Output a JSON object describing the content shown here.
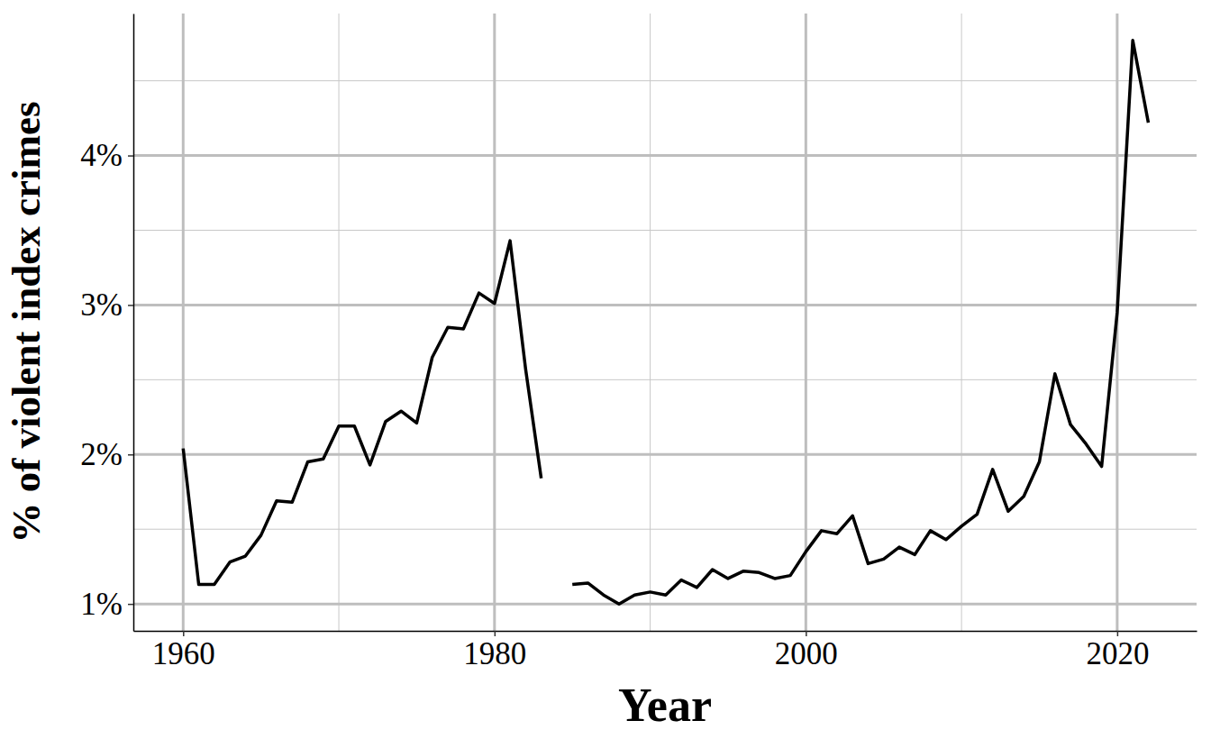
{
  "chart_data": {
    "type": "line",
    "xlabel": "Year",
    "ylabel": "% of violent index crimes",
    "x": [
      1960,
      1961,
      1962,
      1963,
      1964,
      1965,
      1966,
      1967,
      1968,
      1969,
      1970,
      1971,
      1972,
      1973,
      1974,
      1975,
      1976,
      1977,
      1978,
      1979,
      1980,
      1981,
      1982,
      1983,
      1984,
      1985,
      1986,
      1987,
      1988,
      1989,
      1990,
      1991,
      1992,
      1993,
      1994,
      1995,
      1996,
      1997,
      1998,
      1999,
      2000,
      2001,
      2002,
      2003,
      2004,
      2005,
      2006,
      2007,
      2008,
      2009,
      2010,
      2011,
      2012,
      2013,
      2014,
      2015,
      2016,
      2017,
      2018,
      2019,
      2020,
      2021,
      2022
    ],
    "values": [
      2.04,
      1.13,
      1.13,
      1.28,
      1.32,
      1.46,
      1.69,
      1.68,
      1.95,
      1.97,
      2.19,
      2.19,
      1.93,
      2.22,
      2.29,
      2.21,
      2.65,
      2.85,
      2.84,
      3.08,
      3.01,
      3.43,
      2.57,
      1.84,
      null,
      1.13,
      1.14,
      1.06,
      1.0,
      1.06,
      1.08,
      1.06,
      1.16,
      1.11,
      1.23,
      1.17,
      1.22,
      1.21,
      1.17,
      1.19,
      1.35,
      1.49,
      1.47,
      1.59,
      1.27,
      1.3,
      1.38,
      1.33,
      1.49,
      1.43,
      1.52,
      1.6,
      1.9,
      1.62,
      1.72,
      1.95,
      2.54,
      2.2,
      2.07,
      1.92,
      2.95,
      4.77,
      4.22
    ],
    "color": "#000000",
    "xlim": [
      1956.8,
      2025.1
    ],
    "ylim": [
      0.82,
      4.95
    ],
    "xticks": [
      1960,
      1980,
      2000,
      2020
    ],
    "yticks": [
      {
        "value": 1,
        "label": "1%"
      },
      {
        "value": 2,
        "label": "2%"
      },
      {
        "value": 3,
        "label": "3%"
      },
      {
        "value": 4,
        "label": "4%"
      }
    ],
    "grid": true
  }
}
